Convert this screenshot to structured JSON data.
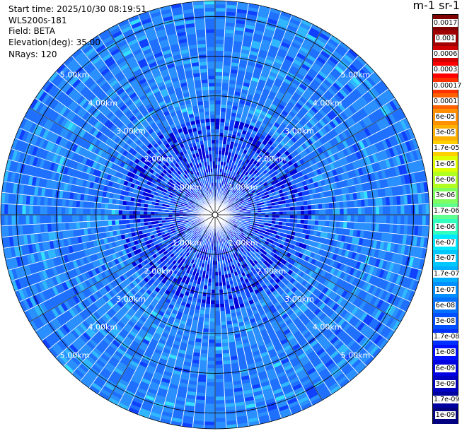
{
  "header": {
    "start_time": "Start time: 2025/10/30 08:19:51",
    "instrument": "WLS200s-181",
    "field": "Field: BETA",
    "elevation": "Elevation(deg): 35.00",
    "nrays": "NRays: 120"
  },
  "colorbar": {
    "title": "m-1 sr-1",
    "labels": [
      "0.0017",
      "0.001",
      "0.0006",
      "0.0003",
      "0.00017",
      "0.0001",
      "6e-05",
      "3e-05",
      "1.7e-05",
      "1e-05",
      "6e-06",
      "3e-06",
      "1.7e-06",
      "1e-06",
      "6e-07",
      "3e-07",
      "1.7e-07",
      "1e-07",
      "6e-08",
      "3e-08",
      "1.7e-08",
      "1e-08",
      "6e-09",
      "3e-09",
      "1.7e-09",
      "1e-09"
    ],
    "colors": [
      "#800000",
      "#a00000",
      "#d00000",
      "#ff0000",
      "#ff3000",
      "#ff6000",
      "#ff9000",
      "#ffb000",
      "#ffd000",
      "#e0ff00",
      "#b0ff20",
      "#80ff60",
      "#60ff90",
      "#30ffc0",
      "#00e8ff",
      "#00c8ff",
      "#00b0ff",
      "#0090ff",
      "#0070ff",
      "#0050ff",
      "#0030ff",
      "#0010ff",
      "#0000e0",
      "#0000c0",
      "#0000a0",
      "#000080"
    ]
  },
  "chart_data": {
    "type": "heatmap",
    "projection": "polar (PPI scan)",
    "field": "BETA",
    "units": "m-1 sr-1",
    "scale": "log",
    "value_range": [
      1e-09,
      0.0017
    ],
    "n_rays": 120,
    "elevation_deg": 35.0,
    "range_rings_km": [
      1.0,
      2.0,
      3.0,
      4.0,
      5.0
    ],
    "range_ring_labels": [
      "1.00km",
      "2.00km",
      "3.00km",
      "4.00km",
      "5.00km"
    ],
    "dominant_values": "mostly 3e-08 to 1e-07, sparse 1e-08 near centre, occasional 1.7e-07 to 1e-06 streaks"
  }
}
